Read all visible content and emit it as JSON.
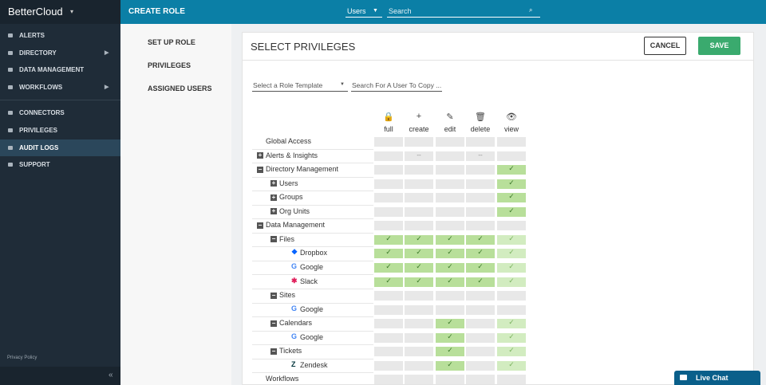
{
  "sidebar": {
    "brand": "BetterCloud",
    "nav": [
      "ALERTS",
      "DIRECTORY",
      "DATA MANAGEMENT",
      "WORKFLOWS",
      "CONNECTORS",
      "PRIVILEGES",
      "AUDIT LOGS",
      "SUPPORT"
    ],
    "privacy": "Privacy Policy",
    "collapse": "«"
  },
  "topbar": {
    "title": "CREATE ROLE",
    "scope": "Users",
    "search": "Search"
  },
  "subnav": [
    "SET UP ROLE",
    "PRIVILEGES",
    "ASSIGNED USERS"
  ],
  "privileges": {
    "title": "SELECT PRIVILEGES",
    "cancel": "CANCEL",
    "save": "SAVE",
    "template": "Select a Role Template",
    "copy": "Search For A User To Copy ...",
    "columns": [
      "full",
      "create",
      "edit",
      "delete",
      "view"
    ],
    "rows": [
      {
        "label": "Global Access"
      },
      {
        "label": "Alerts & Insights",
        "dash": "--"
      },
      {
        "label": "Directory Management"
      },
      {
        "label": "Users"
      },
      {
        "label": "Groups"
      },
      {
        "label": "Org Units"
      },
      {
        "label": "Data Management"
      },
      {
        "label": "Files"
      },
      {
        "label": "Dropbox"
      },
      {
        "label": "Google"
      },
      {
        "label": "Slack"
      },
      {
        "label": "Sites"
      },
      {
        "label": "Google"
      },
      {
        "label": "Calendars"
      },
      {
        "label": "Google"
      },
      {
        "label": "Tickets"
      },
      {
        "label": "Zendesk"
      },
      {
        "label": "Workflows"
      }
    ]
  },
  "chat": "Live Chat"
}
